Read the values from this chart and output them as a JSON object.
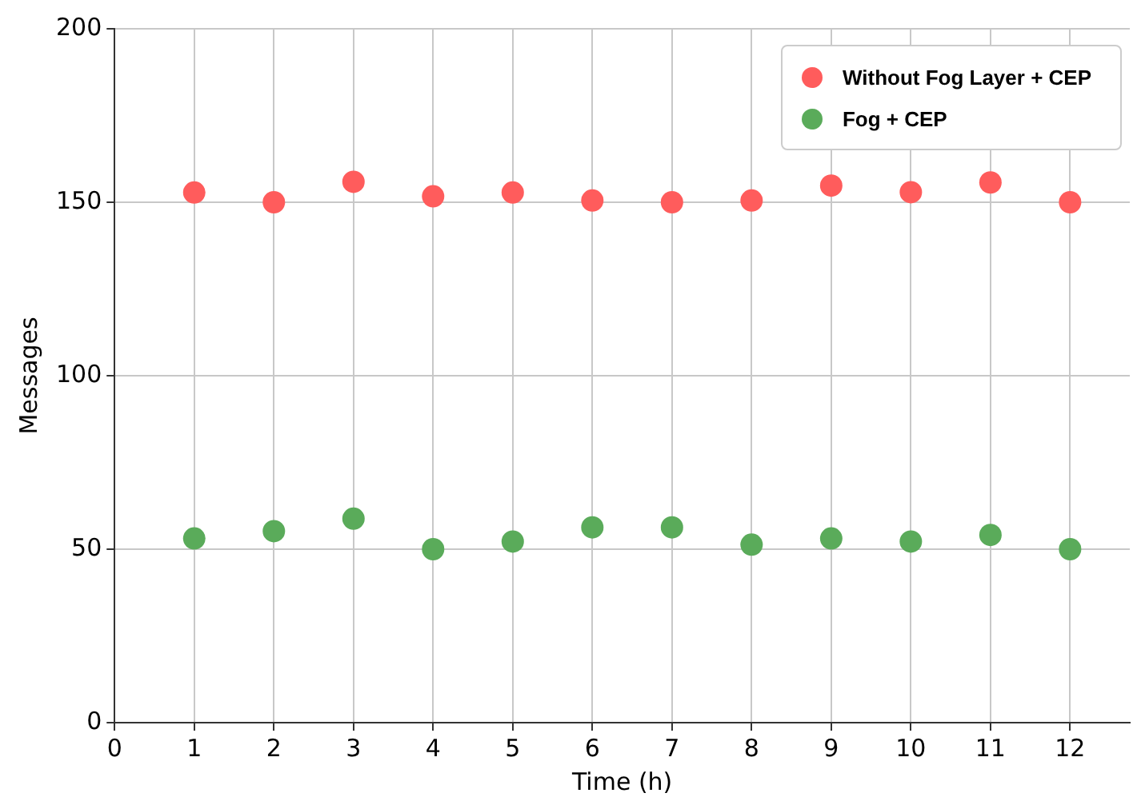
{
  "chart_data": {
    "type": "scatter",
    "xlabel": "Time (h)",
    "ylabel": "Messages",
    "x": [
      1,
      2,
      3,
      4,
      5,
      6,
      7,
      8,
      9,
      10,
      11,
      12
    ],
    "series": [
      {
        "name": "Without Fog Layer + CEP",
        "color": "#ff5c5c",
        "values": [
          152.8,
          150,
          155.9,
          151.7,
          152.8,
          150.5,
          150,
          150.5,
          154.8,
          152.9,
          155.7,
          150
        ]
      },
      {
        "name": "Fog + CEP",
        "color": "#5aab5a",
        "values": [
          53.1,
          55.2,
          58.8,
          50,
          52.2,
          56.3,
          56.3,
          51.3,
          53.1,
          52.2,
          54.1,
          50
        ]
      }
    ],
    "xlim": [
      0,
      12.75
    ],
    "xticks": [
      0,
      1,
      2,
      3,
      4,
      5,
      6,
      7,
      8,
      9,
      10,
      11,
      12
    ],
    "ylim": [
      0,
      200
    ],
    "yticks": [
      0,
      50,
      100,
      150,
      200
    ],
    "grid": true,
    "legend": "top right",
    "marker": "circle"
  }
}
